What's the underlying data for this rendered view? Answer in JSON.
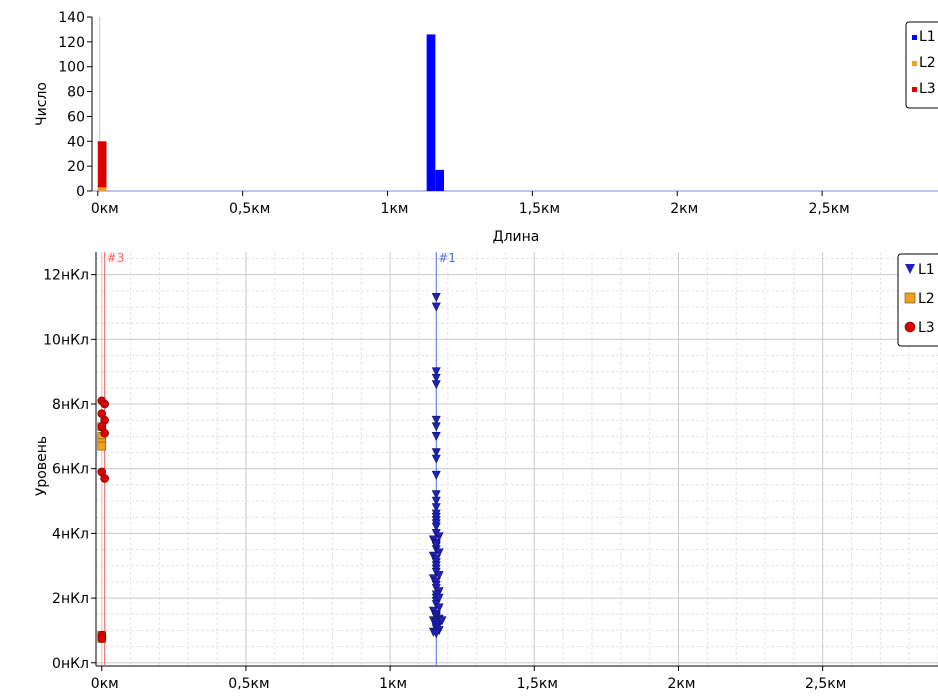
{
  "chart_data": [
    {
      "type": "bar",
      "ylabel": "Число",
      "xlabel": "Длина",
      "ylim": [
        0,
        140
      ],
      "xlim": [
        -0.02,
        2.9
      ],
      "y_ticks": [
        0,
        20,
        40,
        60,
        80,
        100,
        120,
        140
      ],
      "y_tick_labels": [
        "0",
        "20",
        "40",
        "60",
        "80",
        "100",
        "120",
        "140"
      ],
      "x_ticks": [
        0,
        0.5,
        1,
        1.5,
        2,
        2.5
      ],
      "x_tick_labels": [
        "0км",
        "0,5км",
        "1км",
        "1,5км",
        "2км",
        "2,5км"
      ],
      "legend_position": "top-right",
      "series": [
        {
          "name": "L1",
          "color": "#0000ff",
          "bars": [
            {
              "x0": 1.135,
              "x1": 1.165,
              "value": 126
            },
            {
              "x0": 1.165,
              "x1": 1.195,
              "value": 17
            }
          ]
        },
        {
          "name": "L2",
          "color": "#f0a020",
          "bars": [
            {
              "x0": 0.0,
              "x1": 0.03,
              "value": 3
            }
          ]
        },
        {
          "name": "L3",
          "color": "#dd0000",
          "bars": [
            {
              "x0": 0.0,
              "x1": 0.03,
              "value": 40
            }
          ]
        }
      ]
    },
    {
      "type": "scatter",
      "ylabel": "Уровень",
      "ylim": [
        -0.1,
        12.7
      ],
      "xlim": [
        -0.02,
        2.9
      ],
      "y_ticks": [
        0,
        2,
        4,
        6,
        8,
        10,
        12
      ],
      "y_tick_labels": [
        "0нКл",
        "2нКл",
        "4нКл",
        "6нКл",
        "8нКл",
        "10нКл",
        "12нКл"
      ],
      "x_ticks": [
        0,
        0.5,
        1,
        1.5,
        2,
        2.5
      ],
      "x_tick_labels": [
        "0км",
        "0,5км",
        "1км",
        "1,5км",
        "2км",
        "2,5км"
      ],
      "grid": true,
      "legend_position": "top-right",
      "markers": [
        {
          "label": "#3",
          "x": 0.01,
          "color": "#ff6060"
        },
        {
          "label": "#1",
          "x": 1.16,
          "color": "#5070e0"
        }
      ],
      "series": [
        {
          "name": "L1",
          "color": "#2020c0",
          "marker": "triangle-down",
          "x": [
            1.16,
            1.16,
            1.16,
            1.16,
            1.16,
            1.16,
            1.16,
            1.16,
            1.16,
            1.16,
            1.16,
            1.16,
            1.16,
            1.16,
            1.16,
            1.16,
            1.16,
            1.16,
            1.16,
            1.16,
            1.17,
            1.15,
            1.16,
            1.16,
            1.16,
            1.17,
            1.15,
            1.16,
            1.16,
            1.16,
            1.16,
            1.16,
            1.17,
            1.15,
            1.16,
            1.16,
            1.16,
            1.17,
            1.16,
            1.16,
            1.16,
            1.16,
            1.17,
            1.15,
            1.16,
            1.16,
            1.16,
            1.17,
            1.15,
            1.16,
            1.17,
            1.16,
            1.16,
            1.16,
            1.17,
            1.15,
            1.16,
            1.18,
            1.16,
            1.17
          ],
          "y": [
            11.3,
            11.0,
            9.0,
            8.8,
            8.6,
            7.5,
            7.3,
            7.0,
            6.5,
            6.3,
            5.8,
            5.2,
            5.0,
            4.8,
            4.6,
            4.5,
            4.4,
            4.3,
            4.2,
            4.0,
            3.9,
            3.8,
            3.7,
            3.6,
            3.5,
            3.4,
            3.3,
            3.2,
            3.1,
            3.0,
            2.9,
            2.8,
            2.7,
            2.6,
            2.5,
            2.4,
            2.3,
            2.2,
            2.1,
            2.0,
            1.9,
            1.8,
            1.7,
            1.6,
            1.5,
            1.45,
            1.4,
            1.35,
            1.3,
            1.25,
            1.2,
            1.15,
            1.1,
            1.05,
            1.0,
            0.95,
            0.9,
            1.3,
            3.65,
            2.0
          ]
        },
        {
          "name": "L2",
          "color": "#f0a020",
          "marker": "square",
          "x": [
            0.0,
            0.0,
            0.0,
            0.0,
            0.0,
            0.0
          ],
          "y": [
            7.3,
            7.0,
            6.8,
            6.7,
            0.85,
            0.75
          ]
        },
        {
          "name": "L3",
          "color": "#dd0000",
          "marker": "circle",
          "x": [
            0.0,
            0.01,
            0.0,
            0.01,
            0.0,
            0.01,
            0.0,
            0.01,
            0.0,
            0.0
          ],
          "y": [
            8.1,
            8.0,
            7.7,
            7.5,
            7.3,
            7.1,
            5.9,
            5.7,
            0.85,
            0.75
          ]
        }
      ]
    }
  ]
}
